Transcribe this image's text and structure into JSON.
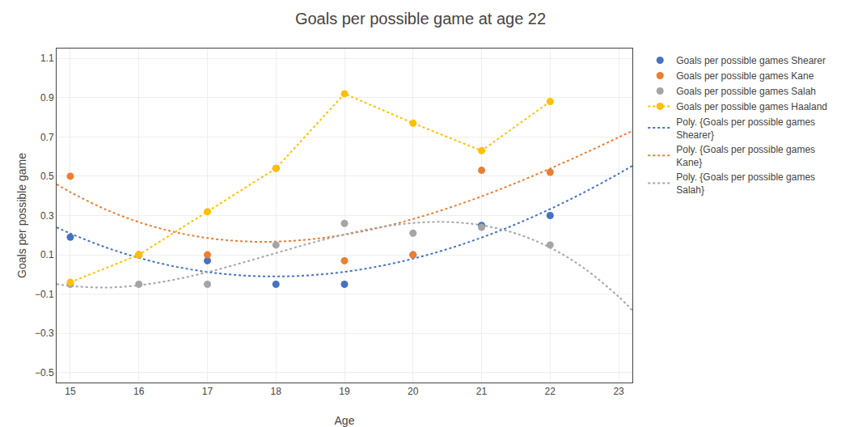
{
  "chart_data": {
    "type": "scatter",
    "title": "Goals per possible game at age 22",
    "x_label": "Age",
    "y_label": "Goals per possible game",
    "xlim": [
      14.8,
      23.2
    ],
    "ylim": [
      -0.55,
      1.15
    ],
    "xticks": [
      15,
      16,
      17,
      18,
      19,
      20,
      21,
      22,
      23
    ],
    "yticks": [
      -0.5,
      -0.3,
      -0.1,
      0.1,
      0.3,
      0.5,
      0.7,
      0.9,
      1.1
    ],
    "grid": true,
    "legend": "right",
    "series": [
      {
        "name": "Goals per possible games Shearer",
        "type": "scatter",
        "marker": "circle",
        "color": "#4472c4",
        "x": [
          15,
          16,
          17,
          18,
          19,
          20,
          21,
          22
        ],
        "values": [
          0.19,
          0.1,
          0.07,
          -0.05,
          -0.05,
          0.1,
          0.25,
          0.3
        ]
      },
      {
        "name": "Goals per possible games Kane",
        "type": "scatter",
        "marker": "circle",
        "color": "#ed7d31",
        "x": [
          15,
          16,
          17,
          18,
          19,
          20,
          21,
          22
        ],
        "values": [
          0.5,
          0.1,
          0.1,
          0.54,
          0.07,
          0.1,
          0.53,
          0.52
        ]
      },
      {
        "name": "Goals per possible games Salah",
        "type": "scatter",
        "marker": "circle",
        "color": "#a5a5a5",
        "x": [
          15,
          16,
          17,
          18,
          19,
          20,
          21,
          22
        ],
        "values": [
          -0.05,
          -0.05,
          -0.05,
          0.15,
          0.26,
          0.21,
          0.24,
          0.15
        ]
      },
      {
        "name": "Goals per possible games Haaland",
        "type": "line",
        "marker": "circle",
        "line_style": "dotted",
        "color": "#ffc000",
        "x": [
          15,
          16,
          17,
          18,
          19,
          20,
          21,
          22
        ],
        "values": [
          -0.04,
          0.1,
          0.32,
          0.54,
          0.92,
          0.77,
          0.63,
          0.88
        ]
      },
      {
        "name": "Poly. {Goals per possible games\nShearer}",
        "type": "line",
        "line_style": "dotted",
        "color": "#4472c4",
        "x": [
          14.8,
          15,
          15.5,
          16,
          16.5,
          17,
          17.5,
          18,
          18.5,
          19,
          19.5,
          20,
          20.5,
          21,
          21.5,
          22,
          22.5,
          23,
          23.2
        ],
        "values": [
          0.2401,
          0.2088,
          0.14,
          0.0847,
          0.0423,
          0.0126,
          -0.0047,
          -0.0102,
          -0.0041,
          0.0133,
          0.0415,
          0.0802,
          0.1291,
          0.1877,
          0.2558,
          0.3329,
          0.4187,
          0.5129,
          0.5528
        ]
      },
      {
        "name": "Poly. {Goals per possible games\nKane}",
        "type": "line",
        "line_style": "dotted",
        "color": "#ed7d31",
        "x": [
          14.8,
          15,
          15.5,
          16,
          16.5,
          17,
          17.5,
          18,
          18.5,
          19,
          19.5,
          20,
          20.5,
          21,
          21.5,
          22,
          22.5,
          23,
          23.2
        ],
        "values": [
          0.4592,
          0.4192,
          0.3333,
          0.2665,
          0.2176,
          0.1855,
          0.1691,
          0.1672,
          0.1788,
          0.2025,
          0.2374,
          0.2823,
          0.3361,
          0.3976,
          0.4656,
          0.5391,
          0.6169,
          0.6979,
          0.7309
        ]
      },
      {
        "name": "Poly. {Goals per possible games\nSalah}",
        "type": "line",
        "line_style": "dotted",
        "color": "#a5a5a5",
        "x": [
          14.8,
          15,
          15.5,
          16,
          16.5,
          17,
          17.5,
          18,
          18.5,
          19,
          19.5,
          20,
          20.5,
          21,
          21.5,
          22,
          22.5,
          23,
          23.2
        ],
        "values": [
          -0.0484,
          -0.0583,
          -0.0668,
          -0.0552,
          -0.0277,
          0.0117,
          0.0586,
          0.109,
          0.1588,
          0.2036,
          0.2393,
          0.2619,
          0.2671,
          0.2507,
          0.2086,
          0.1367,
          0.0307,
          -0.1136,
          -0.1829
        ]
      }
    ]
  }
}
